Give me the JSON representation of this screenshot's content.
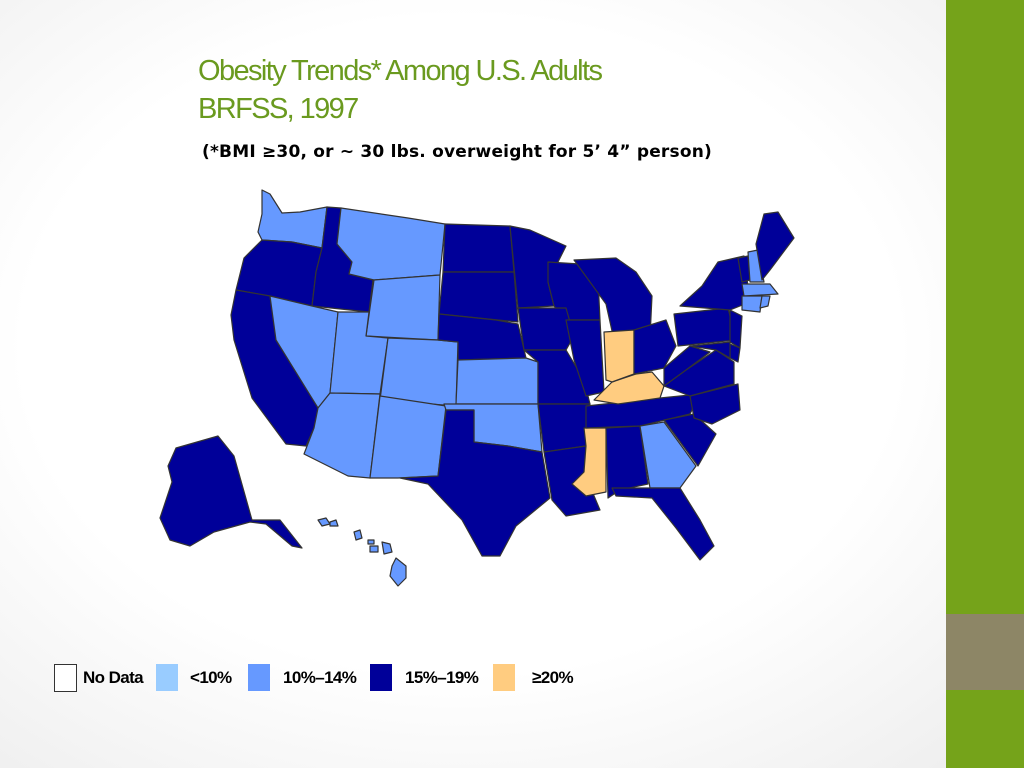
{
  "slide": {
    "title_line1": "Obesity Trends* Among U.S. Adults",
    "title_line2": "BRFSS, 1997",
    "subtitle": "(*BMI ≥30, or ~ 30 lbs. overweight for 5’ 4” person)"
  },
  "colors": {
    "no_data": "#ffffff",
    "lt10": "#99ccff",
    "10_14": "#6699ff",
    "15_19": "#000099",
    "ge20": "#ffcc80",
    "border": "#333333",
    "title": "#6a9a1f",
    "sidebar": "#75a31a"
  },
  "legend": [
    {
      "label": "No Data",
      "key": "no_data"
    },
    {
      "label": "<10%",
      "key": "lt10"
    },
    {
      "label": "10%–14%",
      "key": "10_14"
    },
    {
      "label": "15%–19%",
      "key": "15_19"
    },
    {
      "label": "≥20%",
      "key": "ge20"
    }
  ],
  "map_data": {
    "year": 1997,
    "categories": {
      "10_14": [
        "WA",
        "MT",
        "WY",
        "NV",
        "UT",
        "CO",
        "AZ",
        "NM",
        "KS",
        "OK",
        "GA",
        "NH",
        "MA",
        "CT",
        "RI",
        "HI"
      ],
      "ge20": [
        "IN",
        "KY",
        "MS"
      ],
      "15_19": [
        "OR",
        "ID",
        "CA",
        "ND",
        "SD",
        "NE",
        "MN",
        "IA",
        "MO",
        "WI",
        "IL",
        "MI",
        "OH",
        "TX",
        "AR",
        "LA",
        "AL",
        "TN",
        "FL",
        "SC",
        "NC",
        "VA",
        "WV",
        "PA",
        "NY",
        "ME",
        "VT",
        "NJ",
        "DE",
        "MD",
        "AK"
      ]
    }
  }
}
